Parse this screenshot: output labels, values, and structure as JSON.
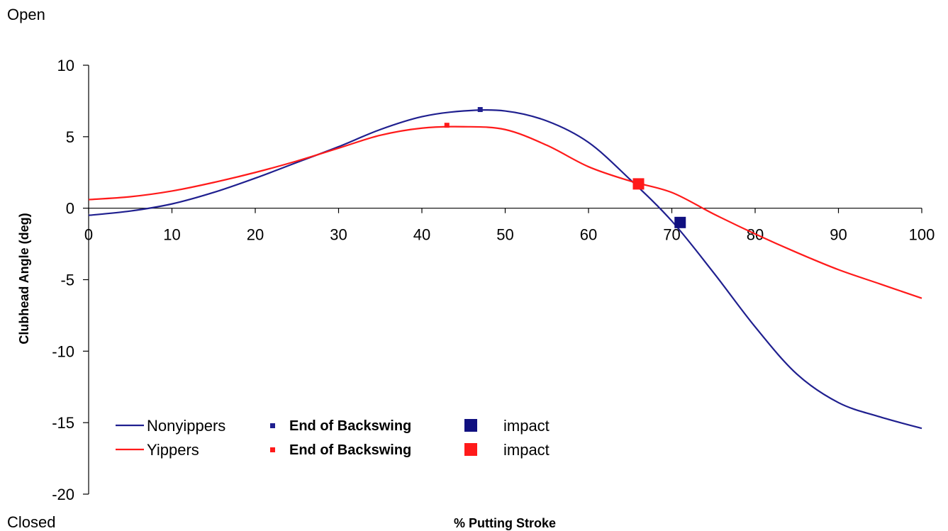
{
  "chart_data": {
    "type": "line",
    "xlabel": "% Putting Stroke",
    "ylabel": "Clubhead Angle (deg)",
    "top_label": "Open",
    "bottom_label": "Closed",
    "xlim": [
      0,
      100
    ],
    "ylim": [
      -20,
      10
    ],
    "x_ticks": [
      0,
      10,
      20,
      30,
      40,
      50,
      60,
      70,
      80,
      90,
      100
    ],
    "y_ticks": [
      10,
      5,
      0,
      -5,
      -10,
      -15,
      -20
    ],
    "grid": false,
    "legend_position": "bottom-left",
    "series": [
      {
        "name": "Nonyippers",
        "color": "#1f1f8f",
        "x": [
          0,
          5,
          10,
          15,
          20,
          25,
          30,
          35,
          40,
          45,
          50,
          55,
          60,
          65,
          70,
          75,
          80,
          85,
          90,
          95,
          100
        ],
        "y": [
          -0.5,
          -0.2,
          0.3,
          1.1,
          2.1,
          3.2,
          4.3,
          5.5,
          6.4,
          6.8,
          6.8,
          6.1,
          4.6,
          2.0,
          -0.9,
          -4.5,
          -8.3,
          -11.6,
          -13.6,
          -14.6,
          -15.4
        ]
      },
      {
        "name": "Yippers",
        "color": "#ff1a1a",
        "x": [
          0,
          5,
          10,
          15,
          20,
          25,
          30,
          35,
          40,
          45,
          50,
          55,
          60,
          65,
          70,
          75,
          80,
          85,
          90,
          95,
          100
        ],
        "y": [
          0.6,
          0.8,
          1.2,
          1.8,
          2.5,
          3.3,
          4.2,
          5.1,
          5.6,
          5.7,
          5.5,
          4.4,
          2.9,
          1.9,
          1.1,
          -0.4,
          -1.8,
          -3.1,
          -4.3,
          -5.3,
          -6.3
        ]
      }
    ],
    "markers": [
      {
        "series": "Nonyippers",
        "label": "End of Backswing",
        "x": 47,
        "y": 6.9,
        "kind": "small",
        "color": "#1f1f8f"
      },
      {
        "series": "Yippers",
        "label": "End of Backswing",
        "x": 43,
        "y": 5.8,
        "kind": "small",
        "color": "#ff1a1a"
      },
      {
        "series": "Nonyippers",
        "label": "impact",
        "x": 71,
        "y": -1.0,
        "kind": "large",
        "color": "#101080"
      },
      {
        "series": "Yippers",
        "label": "impact",
        "x": 66,
        "y": 1.7,
        "kind": "large",
        "color": "#ff1a1a"
      }
    ],
    "legend": [
      {
        "line_label": "Nonyippers",
        "backswing_label": "End of Backswing",
        "impact_label": "impact",
        "line_color": "#1f1f8f",
        "impact_color": "#101080"
      },
      {
        "line_label": "Yippers",
        "backswing_label": "End of Backswing",
        "impact_label": "impact",
        "line_color": "#ff1a1a",
        "impact_color": "#ff1a1a"
      }
    ]
  }
}
